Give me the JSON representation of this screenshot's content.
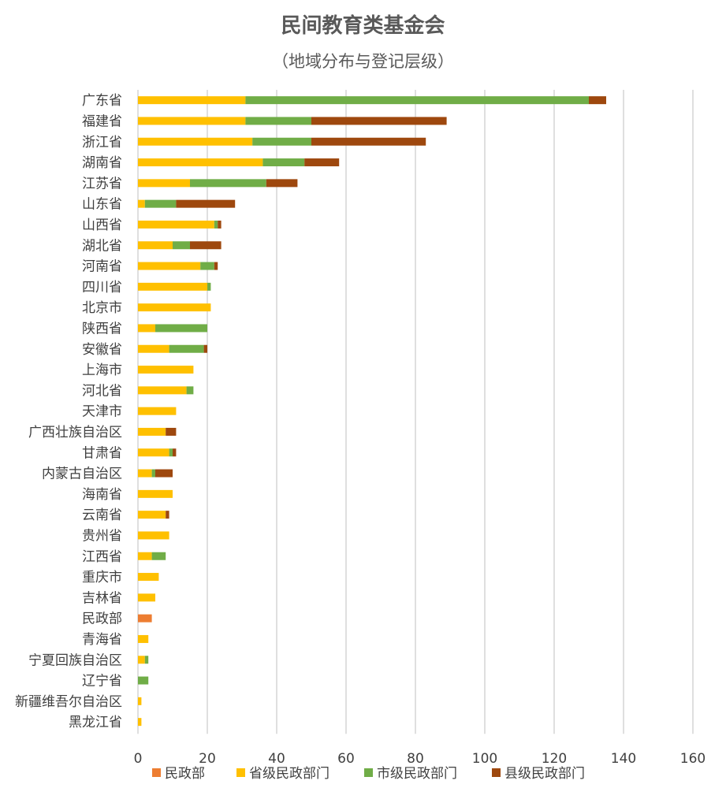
{
  "chart_data": {
    "type": "bar",
    "orientation": "horizontal",
    "stacked": true,
    "title": "民间教育类基金会",
    "subtitle": "（地域分布与登记层级）",
    "categories": [
      "广东省",
      "福建省",
      "浙江省",
      "湖南省",
      "江苏省",
      "山东省",
      "山西省",
      "湖北省",
      "河南省",
      "四川省",
      "北京市",
      "陕西省",
      "安徽省",
      "上海市",
      "河北省",
      "天津市",
      "广西壮族自治区",
      "甘肃省",
      "内蒙古自治区",
      "海南省",
      "云南省",
      "贵州省",
      "江西省",
      "重庆市",
      "吉林省",
      "民政部",
      "青海省",
      "宁夏回族自治区",
      "辽宁省",
      "新疆维吾尔自治区",
      "黑龙江省"
    ],
    "series": [
      {
        "name": "民政部",
        "color": "#ED7D31",
        "values": [
          0,
          0,
          0,
          0,
          0,
          0,
          0,
          0,
          0,
          0,
          0,
          0,
          0,
          0,
          0,
          0,
          0,
          0,
          0,
          0,
          0,
          0,
          0,
          0,
          0,
          4,
          0,
          0,
          0,
          0,
          0
        ]
      },
      {
        "name": "省级民政部门",
        "color": "#FFC000",
        "values": [
          31,
          31,
          33,
          36,
          15,
          2,
          22,
          10,
          18,
          20,
          21,
          5,
          9,
          16,
          14,
          11,
          8,
          9,
          4,
          10,
          8,
          9,
          4,
          6,
          5,
          0,
          3,
          2,
          0,
          1,
          1
        ]
      },
      {
        "name": "市级民政部门",
        "color": "#70AD47",
        "values": [
          99,
          19,
          17,
          12,
          22,
          9,
          1,
          5,
          4,
          1,
          0,
          15,
          10,
          0,
          2,
          0,
          0,
          1,
          1,
          0,
          0,
          0,
          4,
          0,
          0,
          0,
          0,
          1,
          3,
          0,
          0
        ]
      },
      {
        "name": "县级民政部门",
        "color": "#9E480E",
        "values": [
          5,
          39,
          33,
          10,
          9,
          17,
          1,
          9,
          1,
          0,
          0,
          0,
          1,
          0,
          0,
          0,
          3,
          1,
          5,
          0,
          1,
          0,
          0,
          0,
          0,
          0,
          0,
          0,
          0,
          0,
          0
        ]
      }
    ],
    "xlim": [
      0,
      160
    ],
    "xticks": [
      "0",
      "20",
      "40",
      "60",
      "80",
      "100",
      "120",
      "140",
      "160"
    ],
    "grid": "vertical",
    "legend_position": "bottom"
  }
}
